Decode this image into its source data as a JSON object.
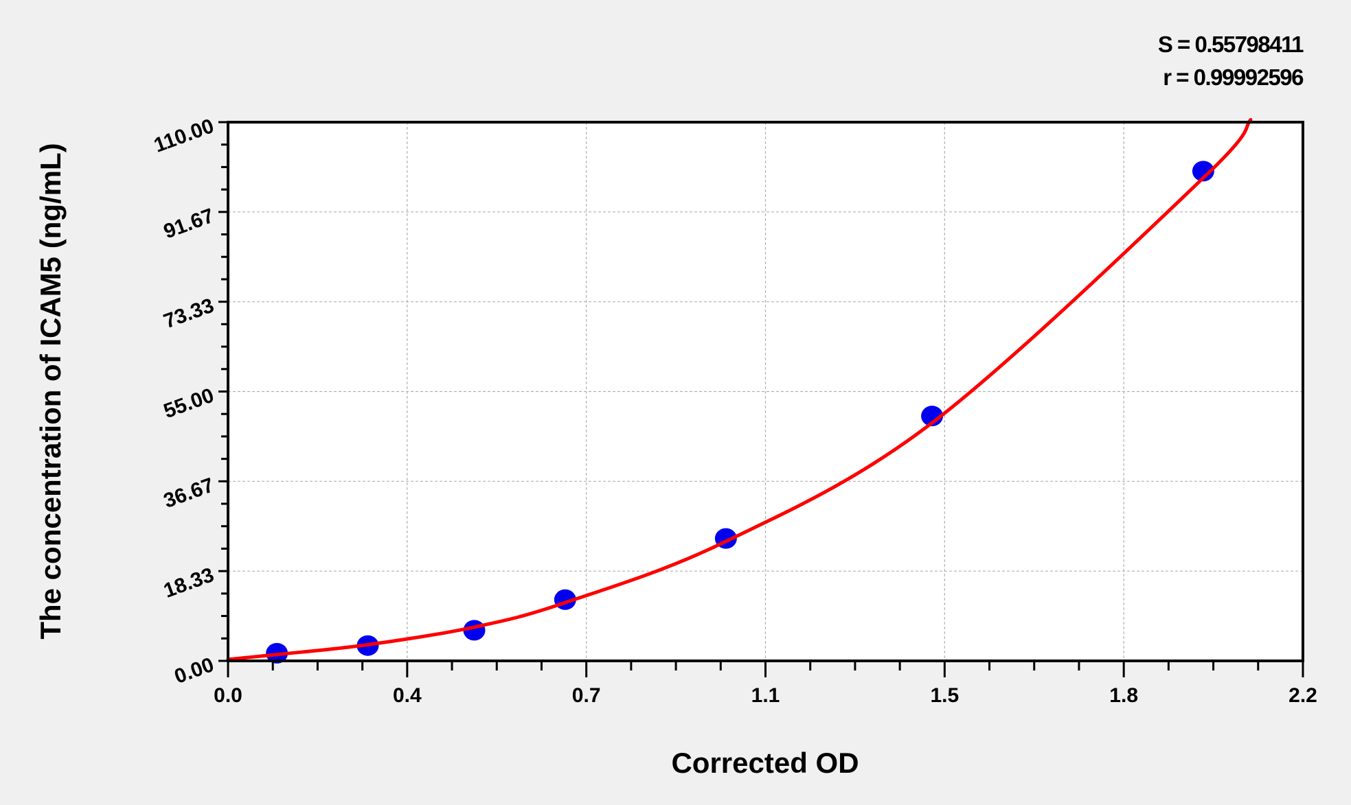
{
  "chart_data": {
    "type": "scatter",
    "xlabel": "Corrected OD",
    "ylabel": "The concentration of ICAM5 (ng/mL)",
    "xlim": [
      0,
      2.2
    ],
    "ylim": [
      0,
      110
    ],
    "x_ticks": [
      "0.0",
      "0.4",
      "0.7",
      "1.1",
      "1.5",
      "1.8",
      "2.2"
    ],
    "y_ticks": [
      "0.00",
      "18.33",
      "36.67",
      "55.00",
      "73.33",
      "91.67",
      "110.00"
    ],
    "grid": true,
    "stats": [
      "S = 0.55798411",
      "r = 0.99992596"
    ],
    "points": {
      "x": [
        0.1,
        0.286,
        0.504,
        0.69,
        1.019,
        1.441,
        1.996
      ],
      "y": [
        1.5625,
        3.125,
        6.25,
        12.5,
        25,
        50,
        100
      ],
      "color": "#0000ee"
    },
    "fit_curve": {
      "x": [
        0.0,
        0.1,
        0.286,
        0.504,
        0.69,
        1.019,
        1.441,
        1.996,
        2.093
      ],
      "y": [
        0.3,
        1.3,
        3.3,
        6.9,
        11.9,
        24.4,
        48.6,
        98.6,
        110.5
      ],
      "color": "#ff0000"
    },
    "colors": {
      "background": "#f0f0f0",
      "plot_area": "#ffffff",
      "grid": "#b0b0b0"
    }
  }
}
